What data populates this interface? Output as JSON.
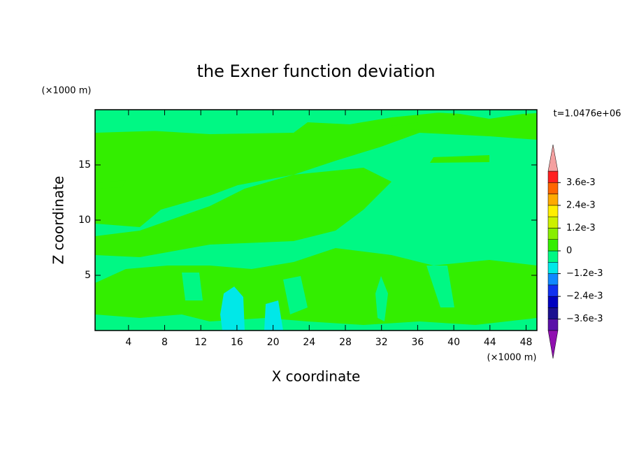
{
  "chart_data": {
    "type": "contour",
    "title": "the Exner function deviation",
    "x_label": "X coordinate",
    "y_label": "Z coordinate",
    "x_unit": "(×1000 m)",
    "y_unit": "(×1000 m)",
    "time_label": "t=1.0476e+06",
    "xlim": [
      0.3,
      49.2
    ],
    "xticks": [
      4,
      8,
      12,
      16,
      20,
      24,
      28,
      32,
      36,
      40,
      44,
      48
    ],
    "ylim": [
      0,
      20
    ],
    "yticks": [
      5,
      10,
      15
    ],
    "colorbar": {
      "lim": [
        -0.0042,
        0.0042
      ],
      "levels": [
        -0.0042,
        -0.0036,
        -0.003,
        -0.0024,
        -0.0018,
        -0.0012,
        -0.0006,
        0,
        0.0006,
        0.0012,
        0.0018,
        0.0024,
        0.003,
        0.0036,
        0.0042
      ],
      "colors": [
        "#5a10a8",
        "#1c1090",
        "#0000c0",
        "#1030f0",
        "#1088ff",
        "#00e8e8",
        "#00f884",
        "#33ee00",
        "#88ee00",
        "#ccf000",
        "#ffee00",
        "#ffaa00",
        "#ff6600",
        "#ff2020"
      ],
      "under_color": "#9010b0",
      "over_color": "#f4a0a0",
      "ticks": [
        {
          "value": 0.0036,
          "label": "3.6e-3"
        },
        {
          "value": 0.0024,
          "label": "2.4e-3"
        },
        {
          "value": 0.0012,
          "label": "1.2e-3"
        },
        0,
        {
          "value": -0.0012,
          "label": "−1.2e-3"
        },
        {
          "value": -0.0024,
          "label": "−2.4e-3"
        },
        {
          "value": -0.0036,
          "label": "−3.6e-3"
        }
      ]
    }
  }
}
